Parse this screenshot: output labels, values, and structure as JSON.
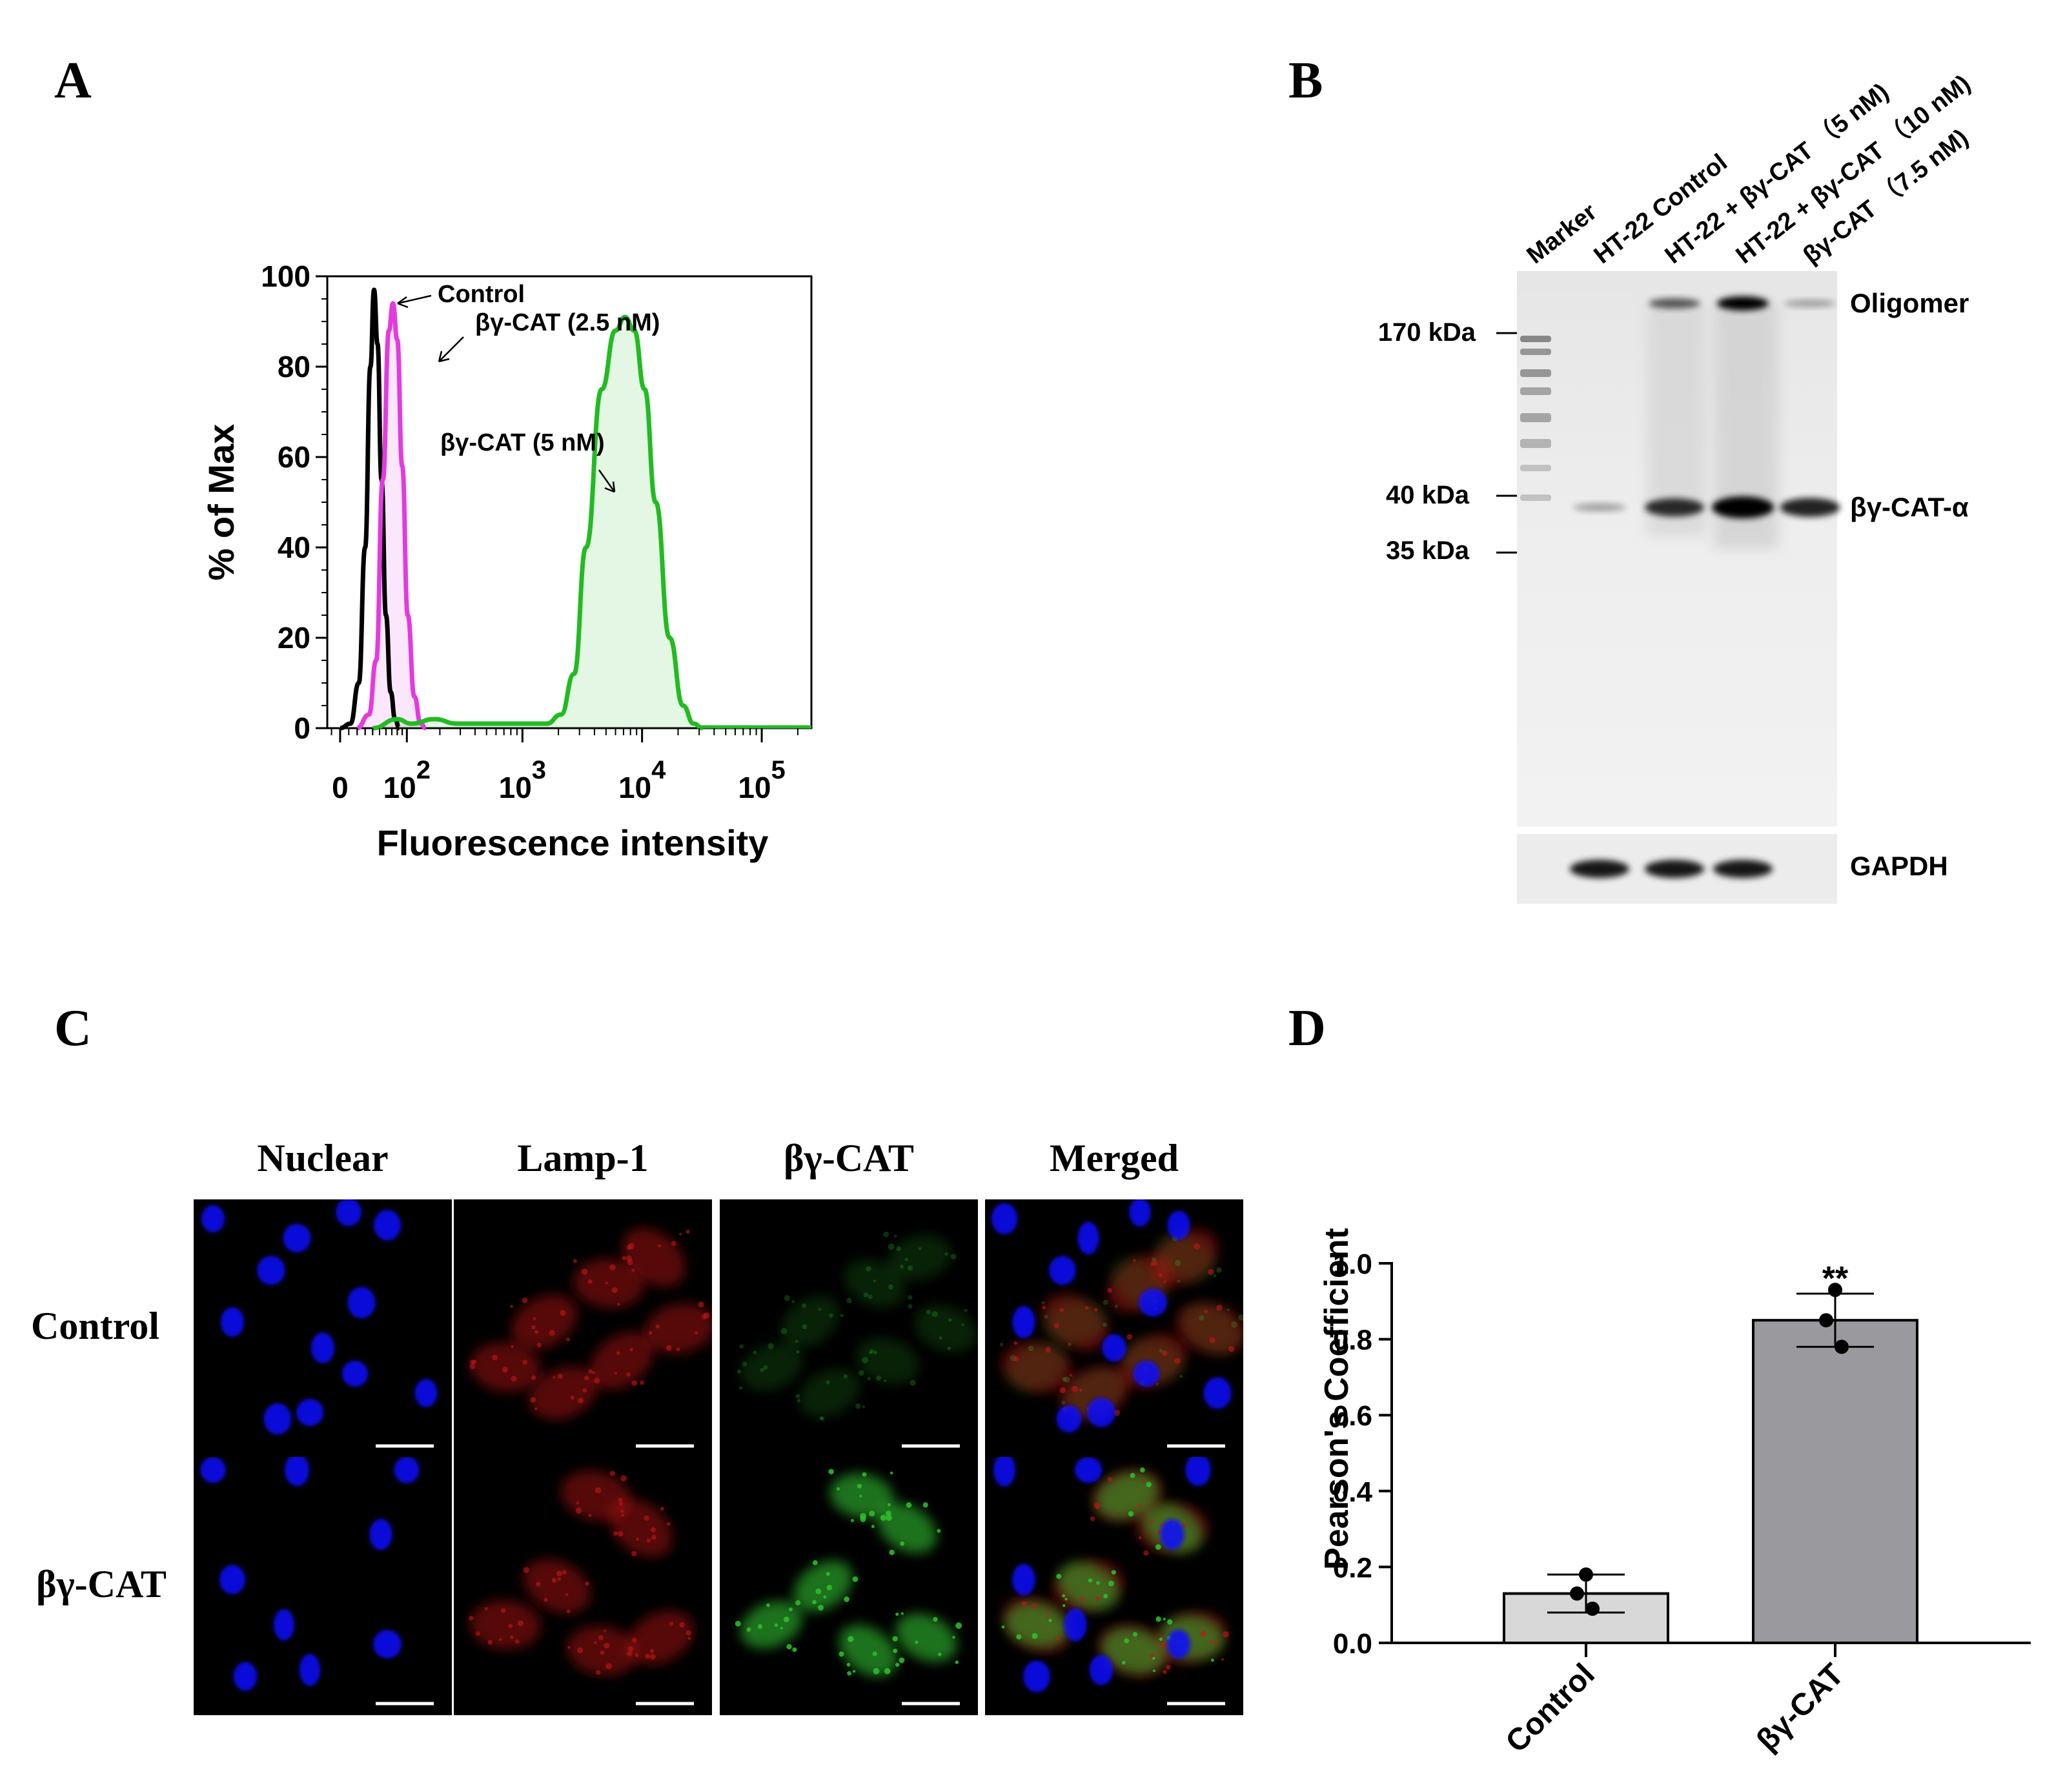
{
  "panels": {
    "a": "A",
    "b": "B",
    "c": "C",
    "d": "D"
  },
  "colors": {
    "control": "#000000",
    "low": "#e23be0",
    "high": "#22bb22",
    "nuclear": "#1010ff",
    "lamp": "#c01818",
    "probe": "#30c030",
    "bar_control": "#d8d8d8",
    "bar_probe": "#9a9a9e"
  },
  "chart_data": [
    {
      "type": "area",
      "panel": "A",
      "xlabel": "Fluorescence intensity",
      "ylabel": "% of Max",
      "xscale": "biexponential",
      "x_ticks": [
        {
          "value": 0,
          "label": "0"
        },
        {
          "value": 100,
          "label": "10",
          "exp": "2"
        },
        {
          "value": 1000,
          "label": "10",
          "exp": "3"
        },
        {
          "value": 10000,
          "label": "10",
          "exp": "4"
        },
        {
          "value": 100000,
          "label": "10",
          "exp": "5"
        }
      ],
      "y_ticks": [
        "0",
        "20",
        "40",
        "60",
        "80",
        "100"
      ],
      "ylim": [
        0,
        100
      ],
      "series": [
        {
          "name": "Control",
          "color": "#000000",
          "points": [
            [
              0,
              0
            ],
            [
              12,
              1
            ],
            [
              22,
              10
            ],
            [
              30,
              40
            ],
            [
              37,
              80
            ],
            [
              42,
              97
            ],
            [
              47,
              85
            ],
            [
              53,
              55
            ],
            [
              60,
              25
            ],
            [
              68,
              8
            ],
            [
              76,
              2
            ],
            [
              84,
              0
            ]
          ]
        },
        {
          "name": "βγ-CAT (2.5 nM)",
          "color": "#e23be0",
          "points": [
            [
              20,
              0
            ],
            [
              35,
              3
            ],
            [
              45,
              15
            ],
            [
              55,
              55
            ],
            [
              65,
              88
            ],
            [
              72,
              94
            ],
            [
              80,
              86
            ],
            [
              90,
              58
            ],
            [
              102,
              25
            ],
            [
              118,
              7
            ],
            [
              135,
              1
            ],
            [
              150,
              0
            ]
          ]
        },
        {
          "name": "βγ-CAT (5 nM)",
          "color": "#22bb22",
          "points": [
            [
              40,
              0
            ],
            [
              80,
              2
            ],
            [
              110,
              1
            ],
            [
              180,
              2
            ],
            [
              280,
              1
            ],
            [
              500,
              1
            ],
            [
              1000,
              1
            ],
            [
              1600,
              1
            ],
            [
              2100,
              3
            ],
            [
              2700,
              12
            ],
            [
              3400,
              40
            ],
            [
              4600,
              75
            ],
            [
              6000,
              88
            ],
            [
              7200,
              91
            ],
            [
              8600,
              88
            ],
            [
              10500,
              75
            ],
            [
              13000,
              50
            ],
            [
              17000,
              20
            ],
            [
              22000,
              5
            ],
            [
              27000,
              1
            ],
            [
              32000,
              0
            ]
          ]
        }
      ],
      "annotations": [
        "Control",
        "βγ-CAT (2.5 nM)",
        "βγ-CAT (5 nM)"
      ]
    },
    {
      "type": "bar",
      "panel": "D",
      "categories": [
        "Control",
        "βγ-CAT"
      ],
      "values": [
        0.13,
        0.85
      ],
      "errors": [
        0.05,
        0.07
      ],
      "points": [
        [
          0.18,
          0.13,
          0.09
        ],
        [
          0.93,
          0.85,
          0.78
        ]
      ],
      "significance": [
        "",
        "**"
      ],
      "ylabel": "Pearson's Coefficient",
      "ylim": [
        0,
        1
      ],
      "y_ticks": [
        "0.0",
        "0.2",
        "0.4",
        "0.6",
        "0.8",
        "1.0"
      ]
    }
  ],
  "blot": {
    "lanes": [
      "Marker",
      "HT-22 Control",
      "HT-22 + βγ-CAT （5 nM)",
      "HT-22 + βγ-CAT （10 nM)",
      "βγ-CAT （7.5 nM)"
    ],
    "markers": [
      "170 kDa",
      "40 kDa",
      "35 kDa"
    ],
    "band_labels": [
      "Oligomer",
      "βγ-CAT-α"
    ],
    "loading_label": "GAPDH",
    "oligomer_intensity": [
      0,
      0,
      0.5,
      1.0,
      0.1
    ],
    "alpha_intensity": [
      0,
      0.1,
      0.75,
      1.0,
      0.8
    ],
    "gapdh_intensity": [
      0,
      1.0,
      1.0,
      1.0,
      0
    ]
  },
  "microscopy": {
    "columns": [
      "Nuclear",
      "Lamp-1",
      "βγ-CAT",
      "Merged"
    ],
    "rows": [
      "Control",
      "βγ-CAT"
    ]
  }
}
